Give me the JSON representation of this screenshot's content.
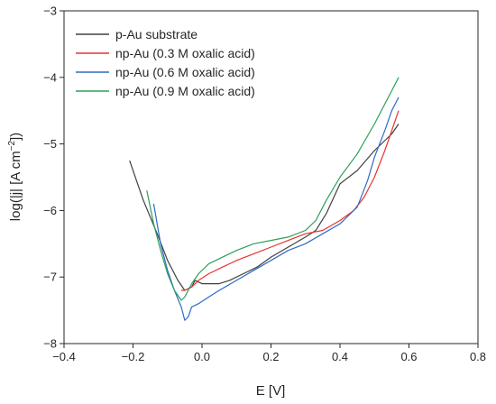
{
  "chart_data": {
    "type": "line",
    "title": "",
    "xlabel": "E [V]",
    "ylabel_base": "log(|j| [A cm",
    "ylabel_sup": "−2",
    "ylabel_tail": "])",
    "xlim": [
      -0.4,
      0.8
    ],
    "ylim": [
      -8,
      -3
    ],
    "xticks": [
      -0.4,
      -0.2,
      0.0,
      0.2,
      0.4,
      0.6,
      0.8
    ],
    "xtick_labels": [
      "−0.4",
      "−0.2",
      "0.0",
      "0.2",
      "0.4",
      "0.6",
      "0.8"
    ],
    "yticks": [
      -8,
      -7,
      -6,
      -5,
      -4,
      -3
    ],
    "ytick_labels": [
      "−8",
      "−7",
      "−6",
      "−5",
      "−4",
      "−3"
    ],
    "grid": false,
    "legend_position": "top-left",
    "series": [
      {
        "name": "p-Au substrate",
        "color": "#404040",
        "x": [
          -0.21,
          -0.17,
          -0.13,
          -0.1,
          -0.07,
          -0.05,
          -0.03,
          -0.02,
          0.0,
          0.02,
          0.05,
          0.08,
          0.12,
          0.16,
          0.2,
          0.25,
          0.3,
          0.33,
          0.36,
          0.4,
          0.45,
          0.5,
          0.55,
          0.57
        ],
        "y": [
          -5.25,
          -5.85,
          -6.35,
          -6.75,
          -7.05,
          -7.2,
          -7.15,
          -7.05,
          -7.1,
          -7.1,
          -7.1,
          -7.05,
          -6.95,
          -6.85,
          -6.7,
          -6.55,
          -6.4,
          -6.3,
          -6.05,
          -5.6,
          -5.4,
          -5.1,
          -4.85,
          -4.7
        ]
      },
      {
        "name": "np-Au (0.3 M oxalic acid)",
        "color": "#e8322e",
        "x": [
          -0.06,
          -0.05,
          -0.03,
          -0.01,
          0.02,
          0.06,
          0.1,
          0.15,
          0.2,
          0.25,
          0.3,
          0.35,
          0.4,
          0.44,
          0.47,
          0.5,
          0.53,
          0.55,
          0.57
        ],
        "y": [
          -7.2,
          -7.2,
          -7.15,
          -7.05,
          -6.95,
          -6.85,
          -6.75,
          -6.65,
          -6.55,
          -6.45,
          -6.35,
          -6.3,
          -6.15,
          -6.0,
          -5.8,
          -5.5,
          -5.1,
          -4.8,
          -4.5
        ]
      },
      {
        "name": "np-Au (0.6 M oxalic acid)",
        "color": "#2f6bc6",
        "x": [
          -0.14,
          -0.12,
          -0.1,
          -0.08,
          -0.06,
          -0.05,
          -0.04,
          -0.03,
          -0.01,
          0.02,
          0.05,
          0.1,
          0.15,
          0.2,
          0.25,
          0.3,
          0.35,
          0.4,
          0.45,
          0.48,
          0.5,
          0.53,
          0.55,
          0.57
        ],
        "y": [
          -5.9,
          -6.5,
          -6.9,
          -7.2,
          -7.45,
          -7.65,
          -7.6,
          -7.45,
          -7.4,
          -7.3,
          -7.2,
          -7.05,
          -6.9,
          -6.75,
          -6.6,
          -6.5,
          -6.35,
          -6.2,
          -5.95,
          -5.55,
          -5.2,
          -4.8,
          -4.5,
          -4.3
        ]
      },
      {
        "name": "np-Au (0.9 M oxalic acid)",
        "color": "#2ca05a",
        "x": [
          -0.16,
          -0.14,
          -0.12,
          -0.1,
          -0.08,
          -0.06,
          -0.05,
          -0.03,
          -0.01,
          0.02,
          0.06,
          0.1,
          0.15,
          0.2,
          0.25,
          0.3,
          0.33,
          0.36,
          0.4,
          0.45,
          0.5,
          0.55,
          0.57
        ],
        "y": [
          -5.7,
          -6.2,
          -6.6,
          -6.95,
          -7.2,
          -7.35,
          -7.3,
          -7.1,
          -6.95,
          -6.8,
          -6.7,
          -6.6,
          -6.5,
          -6.45,
          -6.4,
          -6.3,
          -6.15,
          -5.85,
          -5.5,
          -5.15,
          -4.7,
          -4.2,
          -4.0
        ]
      }
    ]
  }
}
